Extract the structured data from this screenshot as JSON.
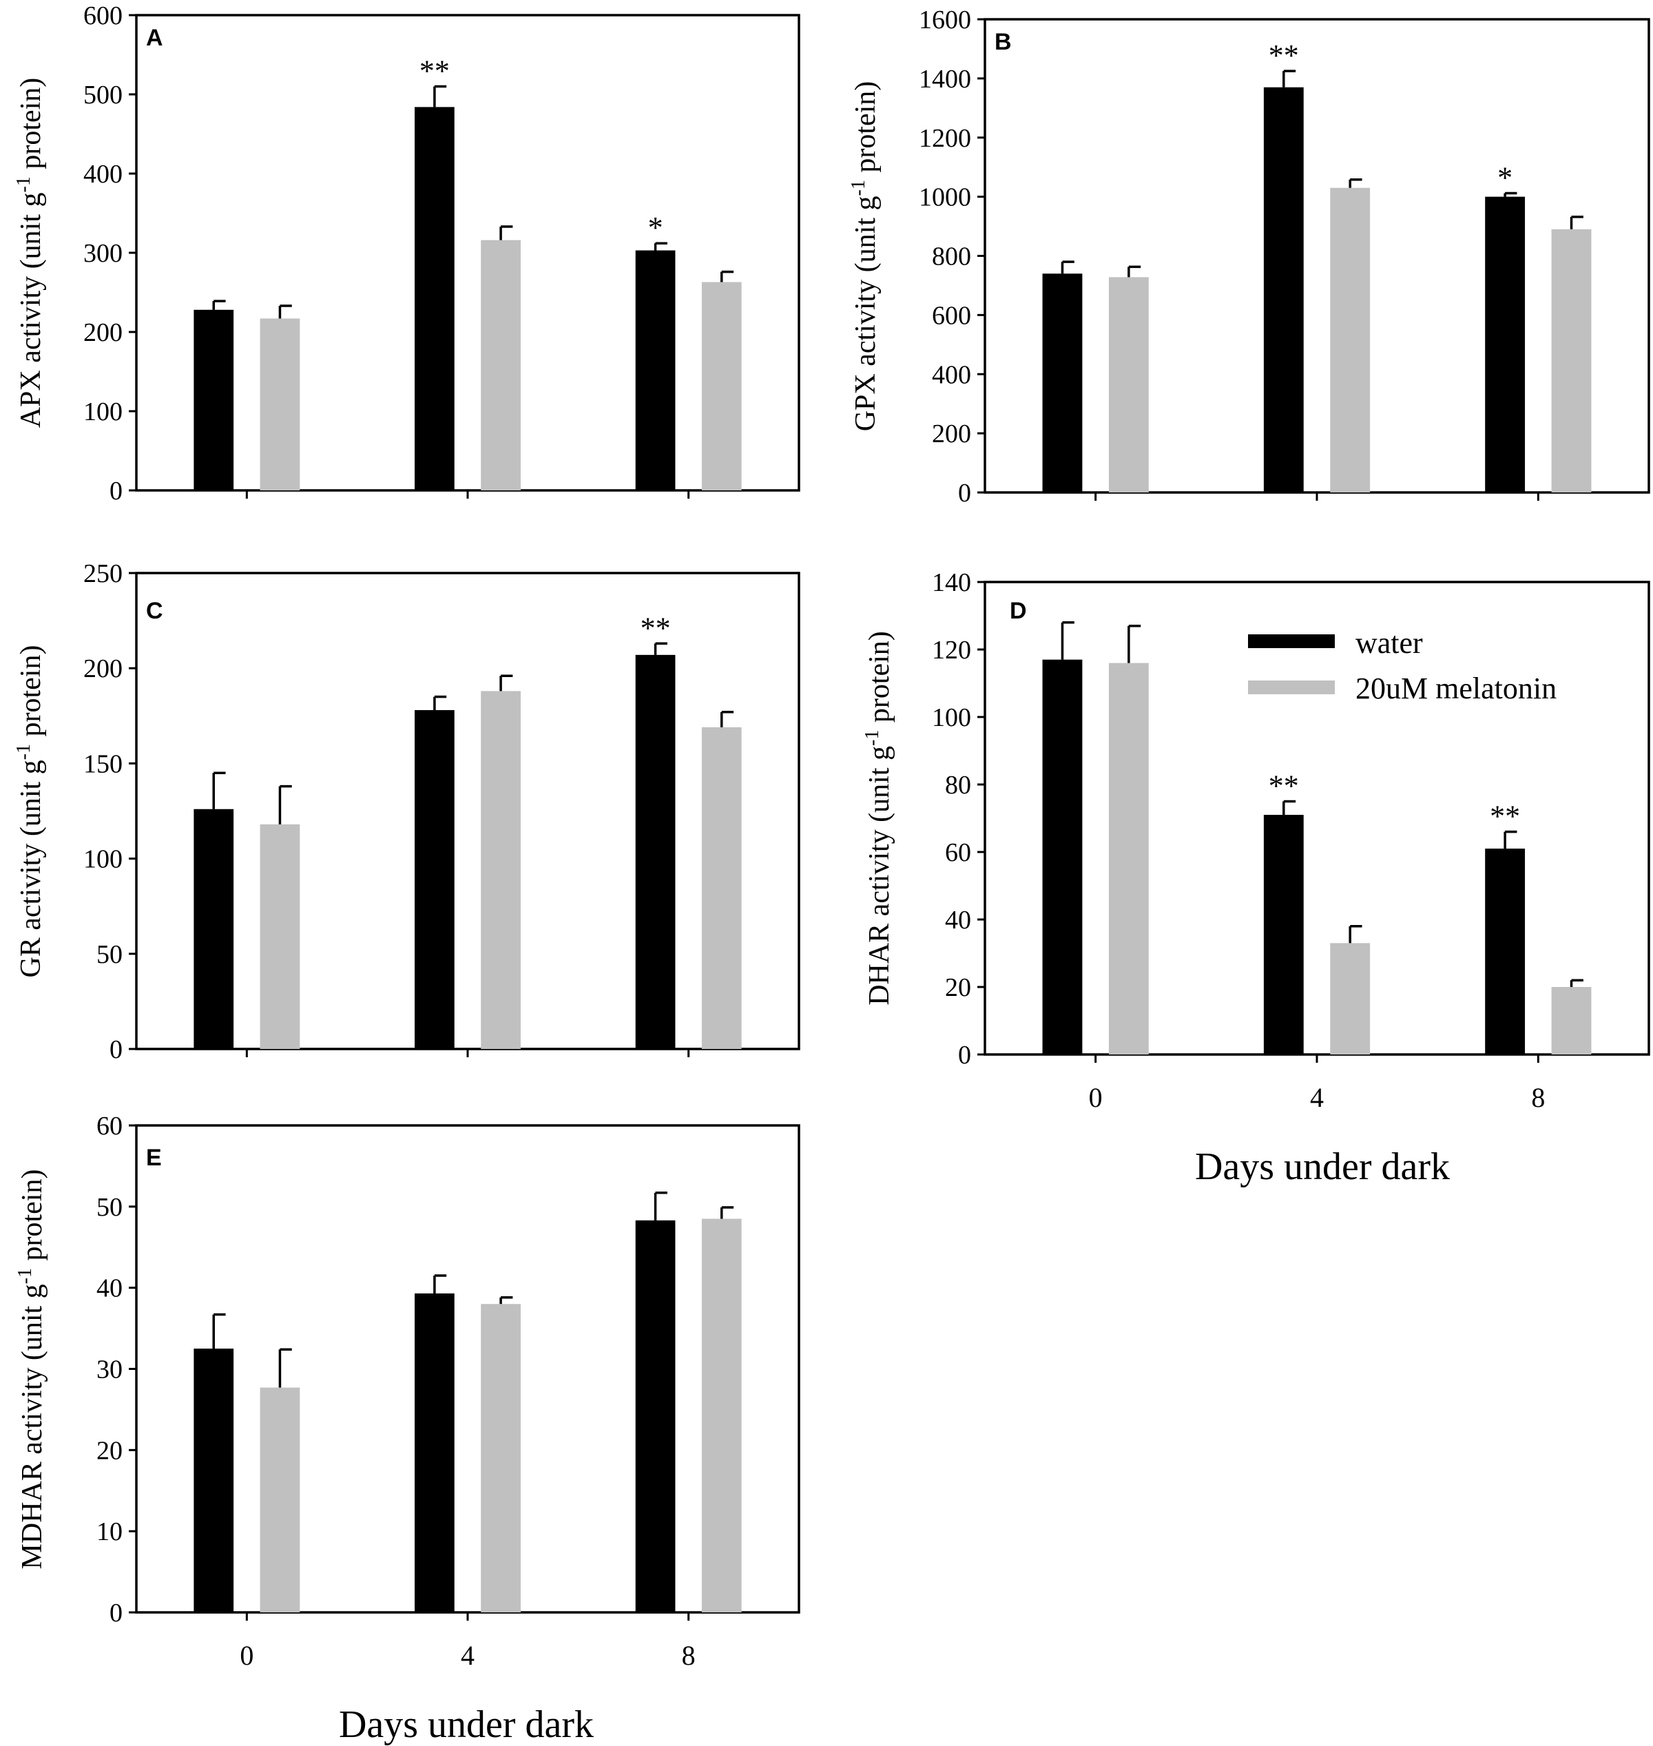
{
  "figure": {
    "xlabel": "Days under dark",
    "legend": {
      "items": [
        "water",
        "20uM melatonin"
      ],
      "colors": [
        "#000000",
        "#c0c0c0"
      ]
    }
  },
  "chart_data": [
    {
      "panel": "A",
      "type": "bar",
      "ylabel": {
        "main": "APX activity (unit g",
        "sup": "-1",
        "tail": " protein)"
      },
      "categories": [
        "0",
        "4",
        "8"
      ],
      "ylim": [
        0,
        600
      ],
      "yticks": [
        0,
        100,
        200,
        300,
        400,
        500,
        600
      ],
      "series": [
        {
          "name": "water",
          "color": "#000000",
          "values": [
            228,
            484,
            303
          ],
          "errors": [
            11,
            26,
            9
          ],
          "sig": [
            "",
            "**",
            "*"
          ]
        },
        {
          "name": "20uM melatonin",
          "color": "#c0c0c0",
          "values": [
            217,
            316,
            263
          ],
          "errors": [
            16,
            17,
            13
          ],
          "sig": [
            "",
            "",
            ""
          ]
        }
      ]
    },
    {
      "panel": "B",
      "type": "bar",
      "ylabel": {
        "main": "GPX activity (unit g",
        "sup": "-1",
        "tail": " protein)"
      },
      "categories": [
        "0",
        "4",
        "8"
      ],
      "ylim": [
        0,
        1600
      ],
      "yticks": [
        0,
        200,
        400,
        600,
        800,
        1000,
        1200,
        1400,
        1600
      ],
      "series": [
        {
          "name": "water",
          "color": "#000000",
          "values": [
            740,
            1370,
            1000
          ],
          "errors": [
            40,
            55,
            12
          ],
          "sig": [
            "",
            "**",
            "*"
          ]
        },
        {
          "name": "20uM melatonin",
          "color": "#c0c0c0",
          "values": [
            728,
            1030,
            890
          ],
          "errors": [
            35,
            28,
            42
          ],
          "sig": [
            "",
            "",
            ""
          ]
        }
      ]
    },
    {
      "panel": "C",
      "type": "bar",
      "ylabel": {
        "main": "GR activity (unit g",
        "sup": "-1",
        "tail": " protein)"
      },
      "categories": [
        "0",
        "4",
        "8"
      ],
      "ylim": [
        0,
        250
      ],
      "yticks": [
        0,
        50,
        100,
        150,
        200,
        250
      ],
      "series": [
        {
          "name": "water",
          "color": "#000000",
          "values": [
            126,
            178,
            207
          ],
          "errors": [
            19,
            7,
            6
          ],
          "sig": [
            "",
            "",
            "**"
          ]
        },
        {
          "name": "20uM melatonin",
          "color": "#c0c0c0",
          "values": [
            118,
            188,
            169
          ],
          "errors": [
            20,
            8,
            8
          ],
          "sig": [
            "",
            "",
            ""
          ]
        }
      ]
    },
    {
      "panel": "D",
      "type": "bar",
      "ylabel": {
        "main": "DHAR activity (unit g",
        "sup": "-1",
        "tail": " protein)"
      },
      "categories": [
        "0",
        "4",
        "8"
      ],
      "ylim": [
        0,
        140
      ],
      "yticks": [
        0,
        20,
        40,
        60,
        80,
        100,
        120,
        140
      ],
      "series": [
        {
          "name": "water",
          "color": "#000000",
          "values": [
            117,
            71,
            61
          ],
          "errors": [
            11,
            4,
            5
          ],
          "sig": [
            "",
            "**",
            "**"
          ]
        },
        {
          "name": "20uM melatonin",
          "color": "#c0c0c0",
          "values": [
            116,
            33,
            20
          ],
          "errors": [
            11,
            5,
            2
          ],
          "sig": [
            "",
            "",
            ""
          ]
        }
      ]
    },
    {
      "panel": "E",
      "type": "bar",
      "ylabel": {
        "main": "MDHAR activity (unit g",
        "sup": "-1",
        "tail": " protein)"
      },
      "categories": [
        "0",
        "4",
        "8"
      ],
      "ylim": [
        0,
        60
      ],
      "yticks": [
        0,
        10,
        20,
        30,
        40,
        50,
        60
      ],
      "series": [
        {
          "name": "water",
          "color": "#000000",
          "values": [
            32.5,
            39.3,
            48.3
          ],
          "errors": [
            4.2,
            2.2,
            3.4
          ],
          "sig": [
            "",
            "",
            ""
          ]
        },
        {
          "name": "20uM melatonin",
          "color": "#c0c0c0",
          "values": [
            27.7,
            38,
            48.5
          ],
          "errors": [
            4.7,
            0.8,
            1.4
          ],
          "sig": [
            "",
            "",
            ""
          ]
        }
      ]
    }
  ]
}
